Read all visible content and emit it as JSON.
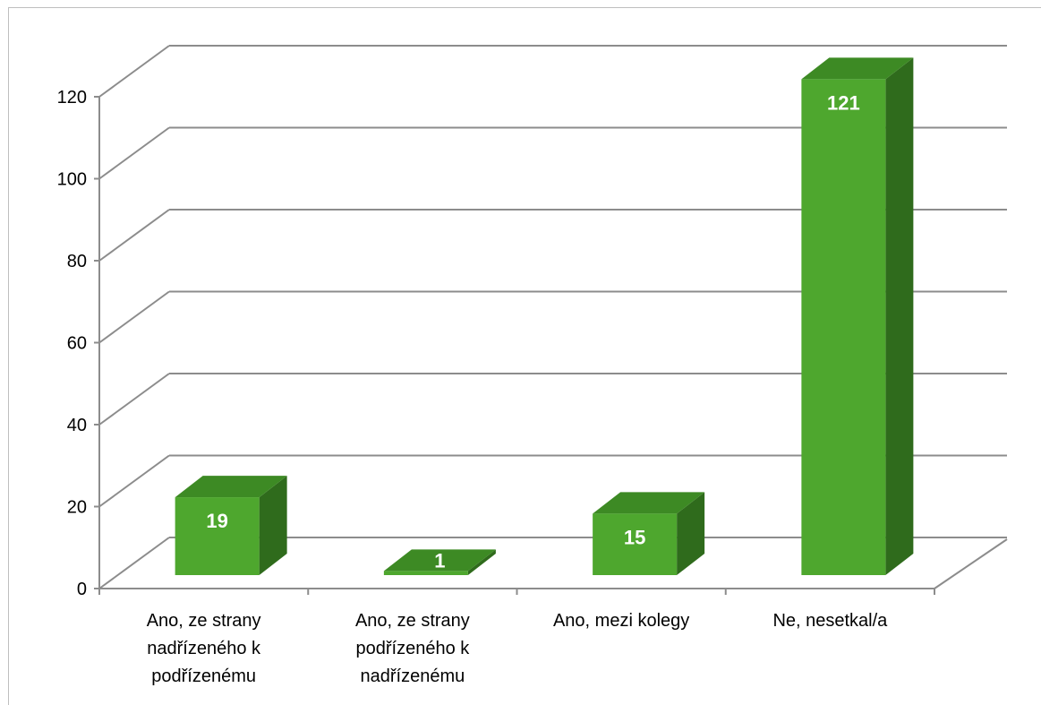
{
  "chart_data": {
    "type": "bar",
    "categories": [
      [
        "Ano, ze strany",
        "nadřízeného k",
        "podřízenému"
      ],
      [
        "Ano, ze strany",
        "podřízeného k",
        "nadřízenému"
      ],
      [
        "Ano, mezi kolegy"
      ],
      [
        "Ne, nesetkal/a"
      ]
    ],
    "values": [
      19,
      1,
      15,
      121
    ],
    "data_labels": [
      "19",
      "1",
      "15",
      "121"
    ],
    "title": "",
    "xlabel": "",
    "ylabel": "",
    "ylim": [
      0,
      120
    ],
    "yticks": [
      0,
      20,
      40,
      60,
      80,
      100,
      120
    ],
    "grid": true,
    "legend": "none",
    "style": "3d-column",
    "colors": {
      "bar_front": "#4ea72e",
      "bar_top": "#3d8a24",
      "bar_side": "#2f6b1c",
      "grid": "#8c8c8c",
      "label": "#ffffff"
    }
  }
}
